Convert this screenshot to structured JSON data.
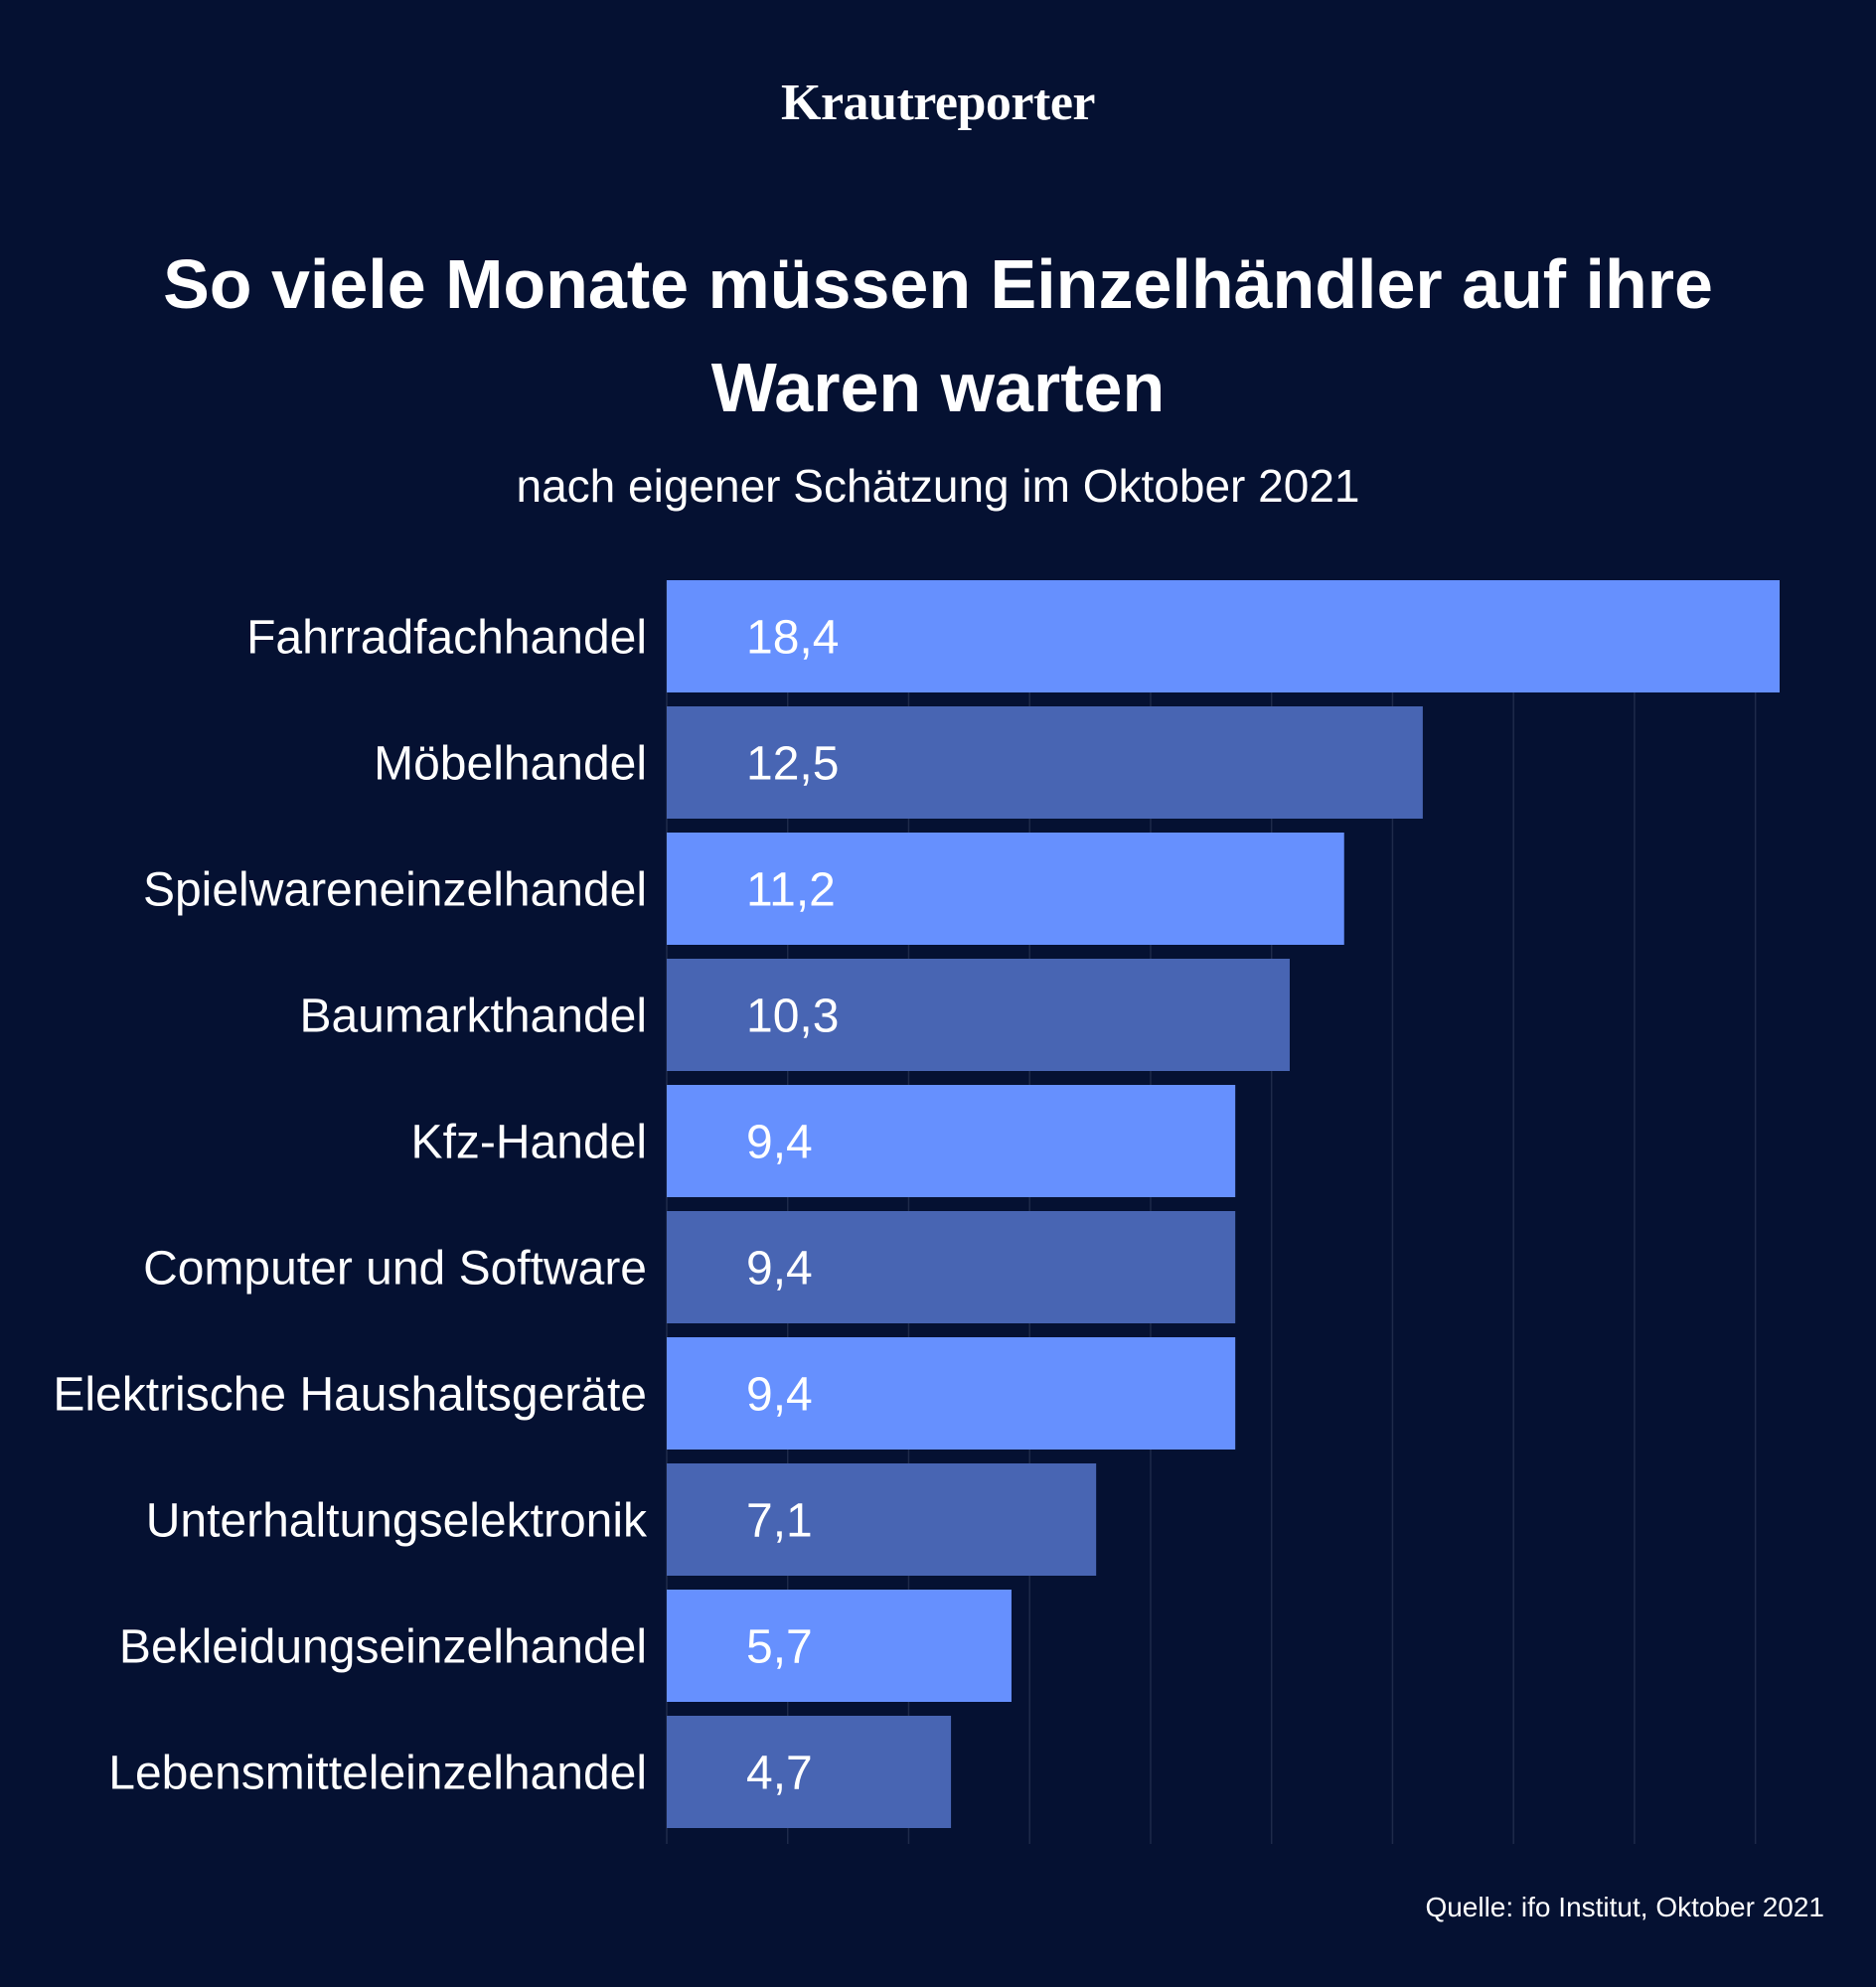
{
  "brand": "Krautreporter",
  "title": "So viele Monate müssen Einzelhändler auf ihre Waren warten",
  "subtitle": "nach eigener Schätzung im Oktober 2021",
  "source": "Quelle: ifo Institut, Oktober 2021",
  "colors": {
    "background": "#051132",
    "bar_light": "#6690fe",
    "bar_dark": "#4865b3",
    "grid": "#1e2a4a",
    "text": "#ffffff"
  },
  "chart_data": {
    "type": "bar",
    "orientation": "horizontal",
    "categories": [
      "Fahrradfachhandel",
      "Möbelhandel",
      "Spielwareneinzelhandel",
      "Baumarkthandel",
      "Kfz-Handel",
      "Computer und Software",
      "Elektrische Haushaltsgeräte",
      "Unterhaltungselektronik",
      "Bekleidungseinzelhandel",
      "Lebensmitteleinzelhandel"
    ],
    "values": [
      18.4,
      12.5,
      11.2,
      10.3,
      9.4,
      9.4,
      9.4,
      7.1,
      5.7,
      4.7
    ],
    "value_labels": [
      "18,4",
      "12,5",
      "11,2",
      "10,3",
      "9,4",
      "9,4",
      "9,4",
      "7,1",
      "5,7",
      "4,7"
    ],
    "xlim": [
      0,
      18.4
    ],
    "grid": true,
    "gridline_step": 2,
    "axis_labels": false
  }
}
